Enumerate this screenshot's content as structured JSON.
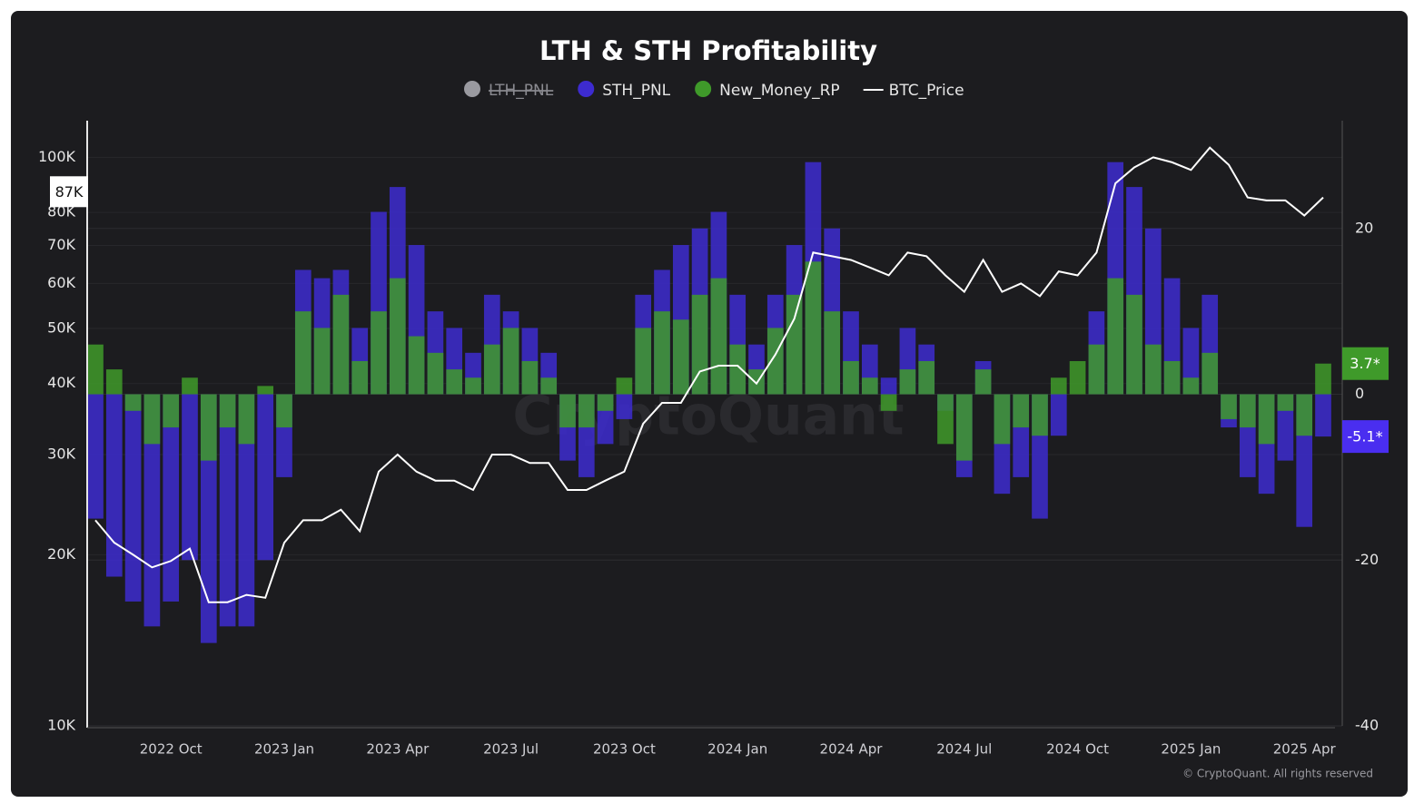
{
  "chart_data": {
    "type": "bar_line",
    "title": "LTH & STH Profitability",
    "categories": [
      null,
      null,
      null,
      null,
      "2022 Oct",
      null,
      null,
      null,
      null,
      null,
      "2023 Jan",
      null,
      null,
      null,
      null,
      null,
      "2023 Apr",
      null,
      null,
      null,
      null,
      null,
      "2023 Jul",
      null,
      null,
      null,
      null,
      null,
      "2023 Oct",
      null,
      null,
      null,
      null,
      null,
      "2024 Jan",
      null,
      null,
      null,
      null,
      null,
      "2024 Apr",
      null,
      null,
      null,
      null,
      null,
      "2024 Jul",
      null,
      null,
      null,
      null,
      null,
      "2024 Oct",
      null,
      null,
      null,
      null,
      null,
      "2025 Jan",
      null,
      null,
      null,
      null,
      null,
      "2025 Apr",
      null
    ],
    "series": [
      {
        "name": "LTH_PNL",
        "color": "#9a9aa0",
        "hidden": true
      },
      {
        "name": "STH_PNL",
        "color": "#3d2bd0",
        "axis": "y2",
        "values": [
          -15,
          -22,
          -25,
          -28,
          -25,
          -20,
          -30,
          -28,
          -28,
          -20,
          -10,
          15,
          14,
          15,
          8,
          22,
          25,
          18,
          10,
          8,
          5,
          12,
          10,
          8,
          5,
          -8,
          -10,
          -6,
          -3,
          12,
          15,
          18,
          20,
          22,
          12,
          6,
          12,
          18,
          28,
          20,
          10,
          6,
          2,
          8,
          6,
          -2,
          -10,
          4,
          -12,
          -10,
          -15,
          -5,
          0,
          10,
          28,
          25,
          20,
          14,
          8,
          12,
          -4,
          -10,
          -12,
          -8,
          -16,
          -5.1
        ]
      },
      {
        "name": "New_Money_RP",
        "color": "#3f9a2a",
        "axis": "y2",
        "values": [
          6,
          3,
          -2,
          -6,
          -4,
          2,
          -8,
          -4,
          -6,
          1,
          -4,
          10,
          8,
          12,
          4,
          10,
          14,
          7,
          5,
          3,
          2,
          6,
          8,
          4,
          2,
          -4,
          -4,
          -2,
          2,
          8,
          10,
          9,
          12,
          14,
          6,
          3,
          8,
          12,
          16,
          10,
          4,
          2,
          -2,
          3,
          4,
          -6,
          -8,
          3,
          -6,
          -4,
          -5,
          2,
          4,
          6,
          14,
          12,
          6,
          4,
          2,
          5,
          -3,
          -4,
          -6,
          -2,
          -5,
          3.7
        ]
      },
      {
        "name": "BTC_Price",
        "color": "#ffffff",
        "values": [
          23000,
          21000,
          20000,
          19000,
          19500,
          20500,
          16500,
          16500,
          17000,
          16800,
          21000,
          23000,
          23000,
          24000,
          22000,
          28000,
          30000,
          28000,
          27000,
          27000,
          26000,
          30000,
          30000,
          29000,
          29000,
          26000,
          26000,
          27000,
          28000,
          34000,
          37000,
          37000,
          42000,
          43000,
          43000,
          40000,
          45000,
          52000,
          68000,
          67000,
          66000,
          64000,
          62000,
          68000,
          67000,
          62000,
          58000,
          66000,
          58000,
          60000,
          57000,
          63000,
          62000,
          68000,
          90000,
          96000,
          100000,
          98000,
          95000,
          104000,
          97000,
          85000,
          84000,
          84000,
          79000,
          85000
        ]
      }
    ],
    "ylim": [
      10000,
      116000
    ],
    "yticks": [
      {
        "value": 10000,
        "label": "10K"
      },
      {
        "value": 20000,
        "label": "20K"
      },
      {
        "value": 30000,
        "label": "30K"
      },
      {
        "value": 40000,
        "label": "40K"
      },
      {
        "value": 50000,
        "label": "50K"
      },
      {
        "value": 60000,
        "label": "60K"
      },
      {
        "value": 70000,
        "label": "70K"
      },
      {
        "value": 80000,
        "label": "80K"
      },
      {
        "value": 100000,
        "label": "100K"
      }
    ],
    "log_y": true,
    "y2lim": [
      -40,
      33
    ],
    "y2ticks": [
      -40,
      -20,
      0,
      20
    ],
    "grid": true,
    "legend": "top",
    "annotations": [
      {
        "label": "87K",
        "value": 87000,
        "axis": "y",
        "color": "#ffffff"
      },
      {
        "label": "3.7*",
        "value": 3.7,
        "axis": "y2",
        "color": "#3f9a2a"
      },
      {
        "label": "-5.1*",
        "value": -5.1,
        "axis": "y2",
        "color": "#4a2ef0"
      }
    ],
    "watermark": "CryptoQuant",
    "credit": "© CryptoQuant. All rights reserved"
  }
}
